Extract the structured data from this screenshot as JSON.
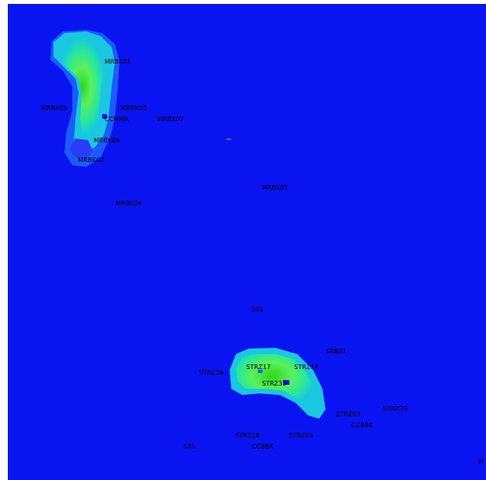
{
  "map": {
    "background_color": "#ffffff",
    "water_color": "#0a14f0",
    "color_scale": [
      "#0a14f0",
      "#1a5cff",
      "#19c8e0",
      "#26e6a0",
      "#5af05a",
      "#2ed81e"
    ],
    "islands": [
      "north-island",
      "south-island"
    ]
  },
  "stations": [
    {
      "name": "MRBK01",
      "group": "north"
    },
    {
      "name": "MRBK05",
      "group": "north"
    },
    {
      "name": "MRBK03",
      "group": "north"
    },
    {
      "name": "CCMMA",
      "group": "north"
    },
    {
      "name": "MRBK07",
      "group": "north"
    },
    {
      "name": "MRBK06",
      "group": "north"
    },
    {
      "name": "MRBK02",
      "group": "north"
    },
    {
      "name": "MRBK04",
      "group": "north"
    },
    {
      "name": "MRBK81",
      "group": "open-water"
    },
    {
      "name": "S01",
      "group": "open-water"
    },
    {
      "name": "SRB01",
      "group": "south"
    },
    {
      "name": "STRZ17",
      "group": "south"
    },
    {
      "name": "STRZ14",
      "group": "south"
    },
    {
      "name": "STRZ36",
      "group": "south"
    },
    {
      "name": "STRZ33",
      "group": "south"
    },
    {
      "name": "STRZ03",
      "group": "south"
    },
    {
      "name": "STRZ29",
      "group": "south"
    },
    {
      "name": "CCBBK",
      "group": "south"
    },
    {
      "name": "STRZ16",
      "group": "south"
    },
    {
      "name": "STRZ05",
      "group": "south"
    },
    {
      "name": "S31",
      "group": "south"
    },
    {
      "name": "CCBBK",
      "group": "south"
    },
    {
      "name": "M",
      "group": "edge"
    }
  ]
}
